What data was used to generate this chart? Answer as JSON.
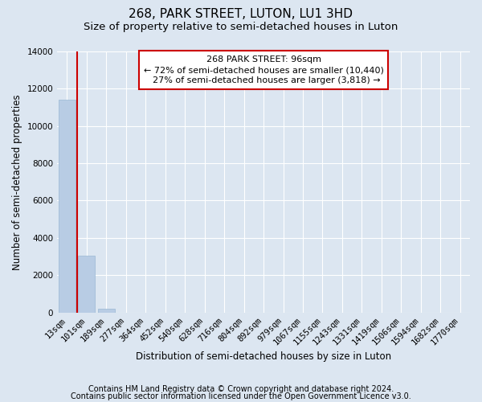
{
  "title": "268, PARK STREET, LUTON, LU1 3HD",
  "subtitle": "Size of property relative to semi-detached houses in Luton",
  "xlabel": "Distribution of semi-detached houses by size in Luton",
  "ylabel": "Number of semi-detached properties",
  "categories": [
    "13sqm",
    "101sqm",
    "189sqm",
    "277sqm",
    "364sqm",
    "452sqm",
    "540sqm",
    "628sqm",
    "716sqm",
    "804sqm",
    "892sqm",
    "979sqm",
    "1067sqm",
    "1155sqm",
    "1243sqm",
    "1331sqm",
    "1419sqm",
    "1506sqm",
    "1594sqm",
    "1682sqm",
    "1770sqm"
  ],
  "values": [
    11400,
    3050,
    200,
    0,
    0,
    0,
    0,
    0,
    0,
    0,
    0,
    0,
    0,
    0,
    0,
    0,
    0,
    0,
    0,
    0,
    0
  ],
  "bar_color": "#b8cce4",
  "bar_edge_color": "#9ab8d4",
  "annotation_text": "268 PARK STREET: 96sqm\n← 72% of semi-detached houses are smaller (10,440)\n  27% of semi-detached houses are larger (3,818) →",
  "annotation_box_color": "#ffffff",
  "annotation_box_edge": "#cc0000",
  "vline_color": "#cc0000",
  "ylim": [
    0,
    14000
  ],
  "yticks": [
    0,
    2000,
    4000,
    6000,
    8000,
    10000,
    12000,
    14000
  ],
  "bg_color": "#dce6f1",
  "plot_bg_color": "#dce6f1",
  "grid_color": "#ffffff",
  "footer_line1": "Contains HM Land Registry data © Crown copyright and database right 2024.",
  "footer_line2": "Contains public sector information licensed under the Open Government Licence v3.0.",
  "title_fontsize": 11,
  "subtitle_fontsize": 9.5,
  "axis_label_fontsize": 8.5,
  "tick_fontsize": 7.5,
  "footer_fontsize": 7,
  "annotation_fontsize": 8
}
